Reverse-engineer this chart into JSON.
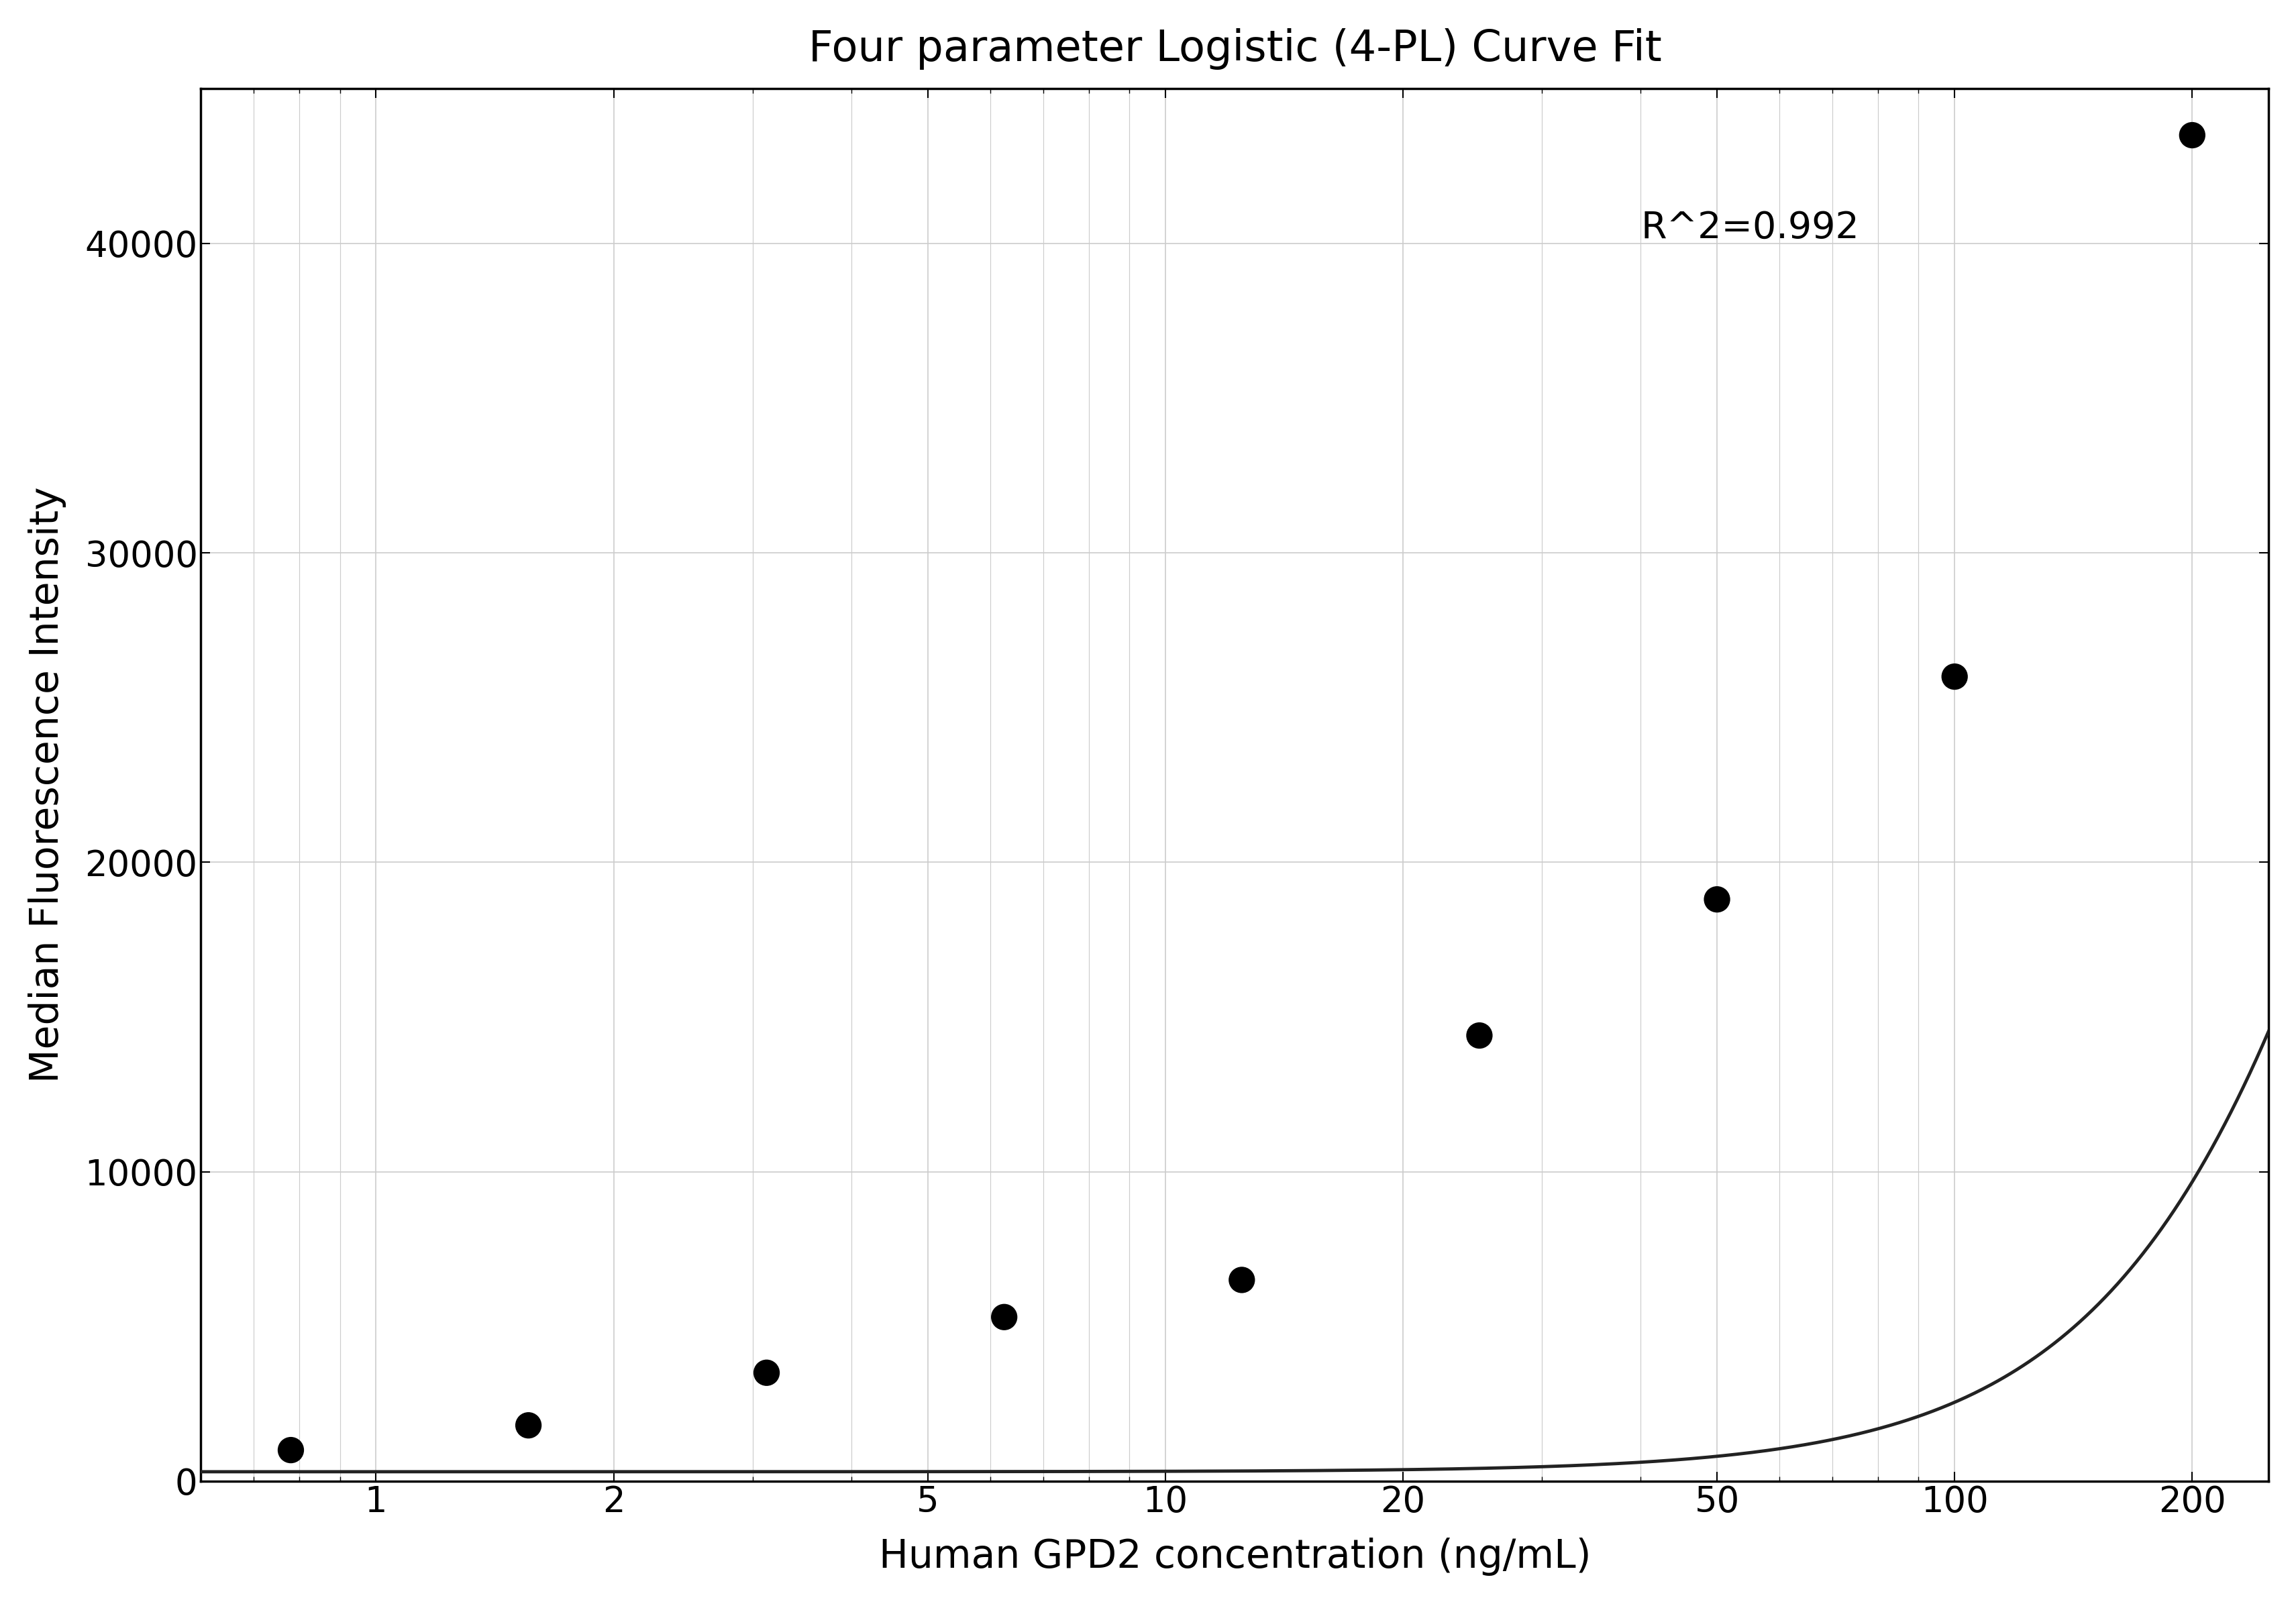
{
  "title": "Four parameter Logistic (4-PL) Curve Fit",
  "xlabel": "Human GPD2 concentration (ng/mL)",
  "ylabel": "Median Fluorescence Intensity",
  "r_squared_text": "R^2=0.992",
  "scatter_x": [
    0.78,
    1.56,
    3.125,
    6.25,
    12.5,
    25,
    50,
    100,
    200
  ],
  "scatter_y": [
    1000,
    1800,
    3500,
    5300,
    6500,
    14400,
    18800,
    26000,
    43500
  ],
  "xscale": "log",
  "xlim": [
    0.6,
    250
  ],
  "ylim": [
    0,
    45000
  ],
  "xticks": [
    1,
    2,
    5,
    10,
    20,
    50,
    100,
    200
  ],
  "yticks": [
    0,
    10000,
    20000,
    30000,
    40000
  ],
  "dot_color": "#000000",
  "dot_size": 800,
  "curve_color": "#222222",
  "curve_linewidth": 3.5,
  "grid_color": "#cccccc",
  "grid_linewidth": 1.2,
  "background_color": "#ffffff",
  "title_fontsize": 46,
  "label_fontsize": 42,
  "tick_fontsize": 38,
  "annotation_fontsize": 40,
  "r2_x": 40,
  "r2_y": 40500,
  "4pl_A": 300,
  "4pl_B": 2.2,
  "4pl_C": 500,
  "4pl_D": 80000
}
